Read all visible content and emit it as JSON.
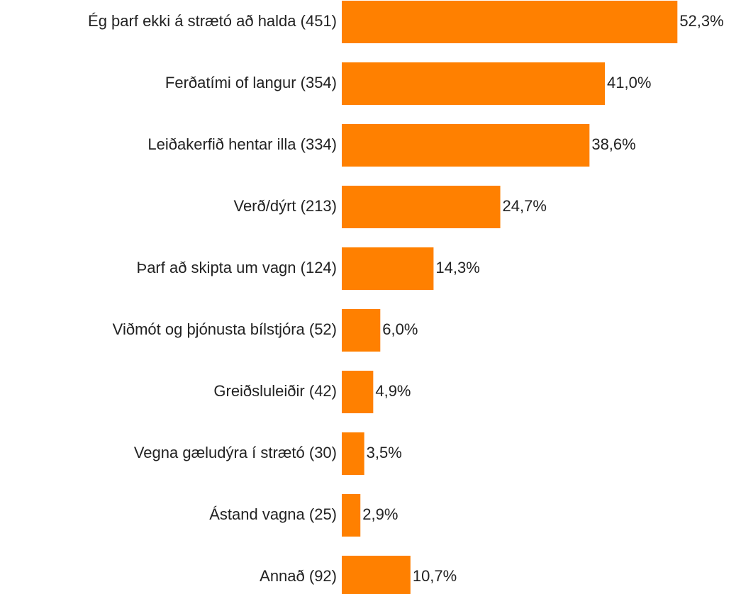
{
  "chart_data": {
    "type": "hbar",
    "categories": [
      "Ég þarf ekki á strætó að halda  (451)",
      "Ferðatími of langur (354)",
      "Leiðakerfið hentar illa (334)",
      "Verð/dýrt (213)",
      "Þarf að skipta um vagn (124)",
      "Viðmót og þjónusta bílstjóra (52)",
      "Greiðsluleiðir (42)",
      "Vegna gæludýra í strætó (30)",
      "Ástand vagna (25)",
      "Annað (92)"
    ],
    "values": [
      52.3,
      41.0,
      38.6,
      24.7,
      14.3,
      6.0,
      4.9,
      3.5,
      2.9,
      10.7
    ],
    "value_labels": [
      "52,3%",
      "41,0%",
      "38,6%",
      "24,7%",
      "14,3%",
      "6,0%",
      "4,9%",
      "3,5%",
      "2,9%",
      "10,7%"
    ],
    "color": "#ff8000"
  }
}
